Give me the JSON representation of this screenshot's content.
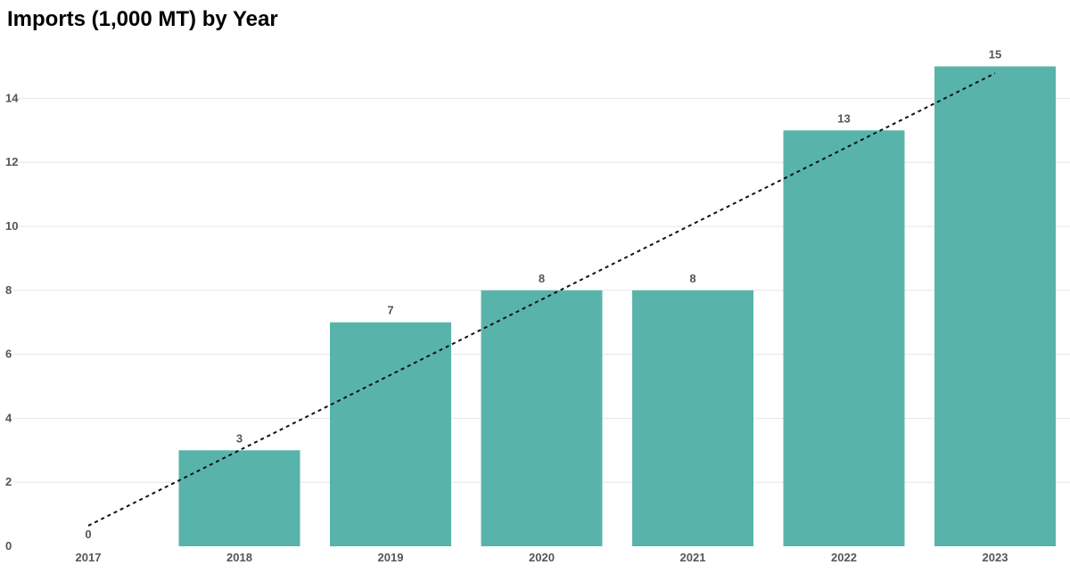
{
  "chart_data": {
    "type": "bar",
    "title": "Imports (1,000 MT) by Year",
    "xlabel": "",
    "ylabel": "",
    "categories": [
      "2017",
      "2018",
      "2019",
      "2020",
      "2021",
      "2022",
      "2023"
    ],
    "values": [
      0,
      3,
      7,
      8,
      8,
      13,
      15
    ],
    "data_labels": [
      "0",
      "3",
      "7",
      "8",
      "8",
      "13",
      "15"
    ],
    "yticks": [
      0,
      2,
      4,
      6,
      8,
      10,
      12,
      14
    ],
    "ylim": [
      0,
      15
    ],
    "grid": true,
    "trendline": {
      "type": "linear",
      "style": "dashed",
      "color": "#111111"
    },
    "colors": {
      "bar": "#58b4aa",
      "label": "#555555",
      "grid": "#e6e6e6"
    },
    "legend": "none"
  }
}
